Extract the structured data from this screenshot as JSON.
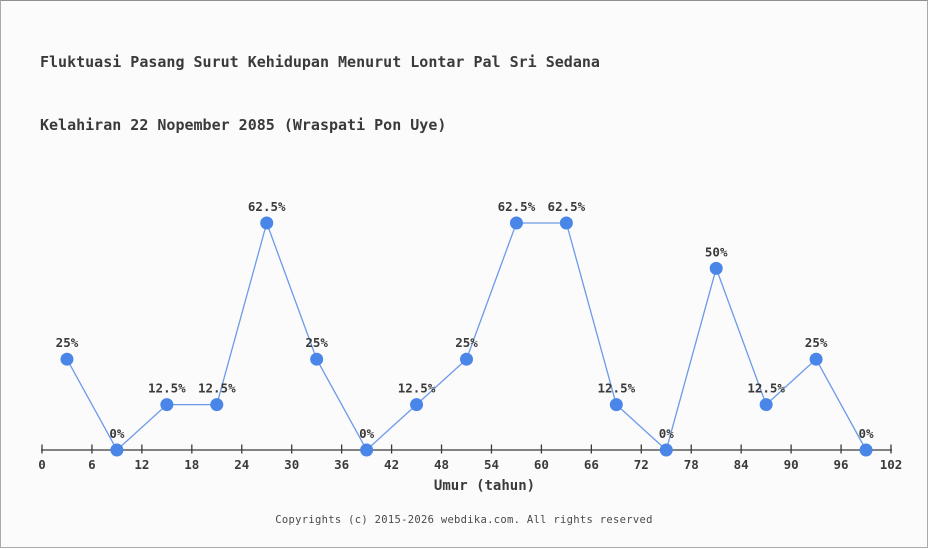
{
  "header": {
    "title_line1": "Fluktuasi Pasang Surut Kehidupan Menurut Lontar Pal Sri Sedana",
    "title_line2": "Kelahiran 22 Nopember 2085 (Wraspati Pon Uye)"
  },
  "chart_data": {
    "type": "line",
    "title": "Fluktuasi Pasang Surut Kehidupan Menurut Lontar Pal Sri Sedana Kelahiran 22 Nopember 2085 (Wraspati Pon Uye)",
    "x": [
      3,
      9,
      15,
      21,
      27,
      33,
      39,
      45,
      51,
      57,
      63,
      69,
      75,
      81,
      87,
      93,
      99
    ],
    "values": [
      25,
      0,
      12.5,
      12.5,
      62.5,
      25,
      0,
      12.5,
      25,
      62.5,
      62.5,
      12.5,
      0,
      50,
      12.5,
      25,
      0
    ],
    "point_labels": [
      "25%",
      "0%",
      "12.5%",
      "12.5%",
      "62.5%",
      "25%",
      "0%",
      "12.5%",
      "25%",
      "62.5%",
      "62.5%",
      "12.5%",
      "0%",
      "50%",
      "12.5%",
      "25%",
      "0%"
    ],
    "xlabel": "Umur (tahun)",
    "ylabel": "",
    "xlim": [
      0,
      102
    ],
    "ylim": [
      0,
      70
    ],
    "x_ticks": [
      0,
      6,
      12,
      18,
      24,
      30,
      36,
      42,
      48,
      54,
      60,
      66,
      72,
      78,
      84,
      90,
      96,
      102
    ],
    "grid": false,
    "legend": "none",
    "colors": {
      "marker": "#4a86e8",
      "line": "#6c9ae8",
      "axis": "#3a3a3a",
      "label_text": "#333333",
      "background": "#fbfbfb"
    }
  },
  "footer": {
    "copyright": "Copyrights (c) 2015-2026 webdika.com. All rights reserved"
  }
}
